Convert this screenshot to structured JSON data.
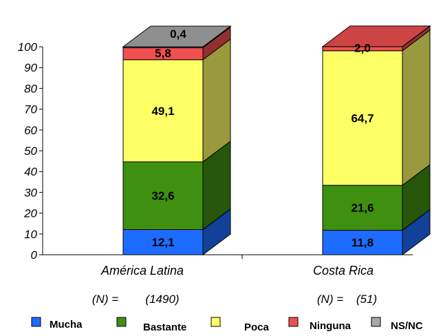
{
  "chart_data": {
    "type": "bar",
    "stacked": true,
    "three_d": true,
    "categories": [
      "América Latina",
      "Costa Rica"
    ],
    "n_labels": [
      {
        "prefix": "(N) =",
        "value": "(1490)"
      },
      {
        "prefix": "(N) =",
        "value": "(51)"
      }
    ],
    "series": [
      {
        "name": "Mucha",
        "color": "#1e6cff",
        "values": [
          12.1,
          11.8
        ],
        "labels": [
          "12,1",
          "11,8"
        ]
      },
      {
        "name": "Bastante",
        "color": "#3f8f10",
        "values": [
          32.6,
          21.6
        ],
        "labels": [
          "32,6",
          "21,6"
        ]
      },
      {
        "name": "Poca",
        "color": "#ffff66",
        "values": [
          49.1,
          64.7
        ],
        "labels": [
          "49,1",
          "64,7"
        ]
      },
      {
        "name": "Ninguna",
        "color": "#f05050",
        "values": [
          5.8,
          2.0
        ],
        "labels": [
          "5,8",
          "2,0"
        ]
      },
      {
        "name": "NS/NC",
        "color": "#a8a8a8",
        "values": [
          0.4,
          0.0
        ],
        "labels": [
          "0,4",
          ""
        ]
      }
    ],
    "yticks": [
      0,
      10,
      20,
      30,
      40,
      50,
      60,
      70,
      80,
      90,
      100
    ],
    "ylim": [
      0,
      100
    ],
    "grid": false,
    "legend_position": "bottom"
  }
}
